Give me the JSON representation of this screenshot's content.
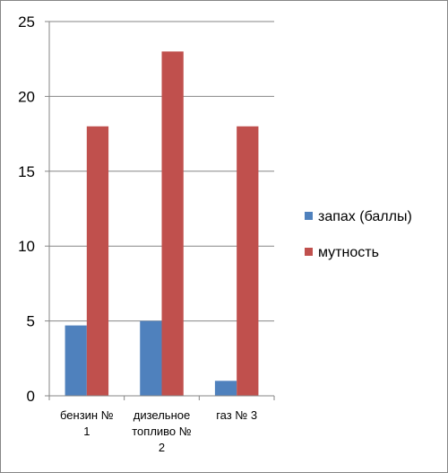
{
  "chart_data": {
    "type": "bar",
    "categories": [
      [
        "бензин №",
        "1"
      ],
      [
        "дизельное",
        "топливо №",
        "2"
      ],
      [
        "газ № 3"
      ]
    ],
    "series": [
      {
        "name": "запах (баллы)",
        "color": "#4f81bd",
        "values": [
          4.7,
          5,
          1
        ]
      },
      {
        "name": "мутность",
        "color": "#c0504d",
        "values": [
          18,
          23,
          18
        ]
      }
    ],
    "ylim": [
      0,
      25
    ],
    "yticks": [
      0,
      5,
      10,
      15,
      20,
      25
    ],
    "grid": true,
    "legend_position": "right",
    "gridline_color": "#868686",
    "title": "",
    "xlabel": "",
    "ylabel": ""
  }
}
